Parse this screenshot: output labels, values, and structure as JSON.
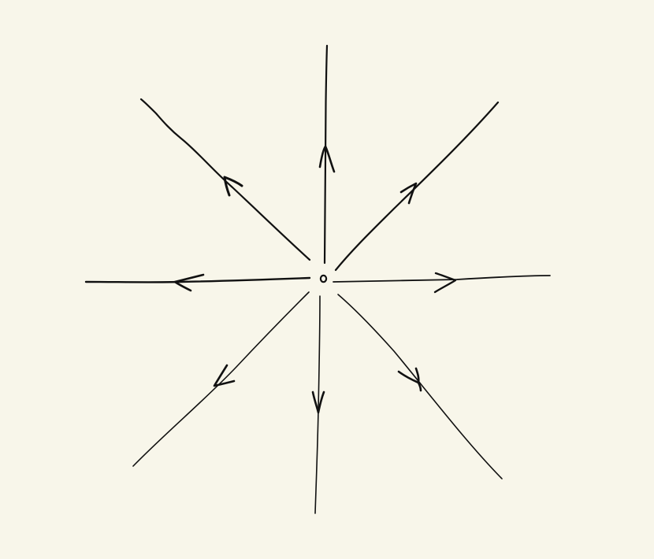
{
  "diagram": {
    "background_color": "#f8f6ea",
    "ink_color": "#111111",
    "center_point": "open-circle",
    "rays": [
      {
        "direction": "up",
        "arrow": "outward"
      },
      {
        "direction": "up-right",
        "arrow": "outward"
      },
      {
        "direction": "right",
        "arrow": "outward"
      },
      {
        "direction": "down-right",
        "arrow": "outward"
      },
      {
        "direction": "down",
        "arrow": "outward"
      },
      {
        "direction": "down-left",
        "arrow": "outward"
      },
      {
        "direction": "left",
        "arrow": "outward"
      },
      {
        "direction": "up-left",
        "arrow": "outward"
      }
    ]
  }
}
